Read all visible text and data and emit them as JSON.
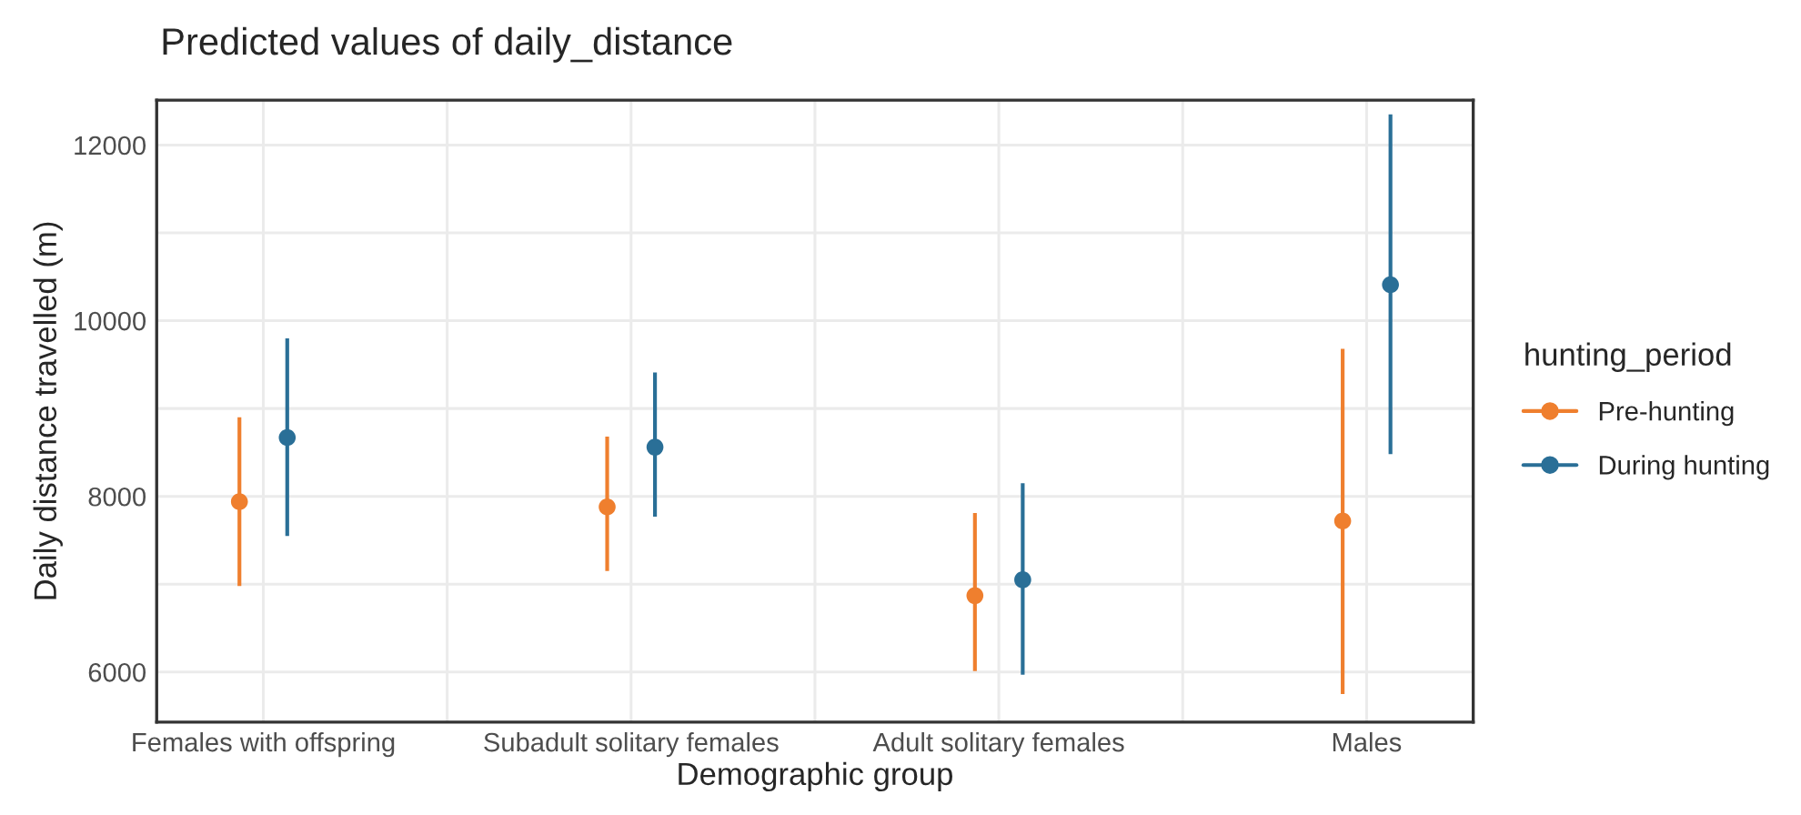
{
  "chart_data": {
    "type": "scatter",
    "title": "Predicted values of daily_distance",
    "xlabel": "Demographic group",
    "ylabel": "Daily distance travelled (m)",
    "legend_title": "hunting_period",
    "categories": [
      "Females with offspring",
      "Subadult solitary females",
      "Adult solitary females",
      "Males"
    ],
    "series": [
      {
        "name": "Pre-hunting",
        "color": "#ef7f2e",
        "values": [
          7940,
          7880,
          6870,
          7720
        ],
        "errors": [
          [
            6980,
            8900
          ],
          [
            7150,
            8680
          ],
          [
            6010,
            7810
          ],
          [
            5750,
            9680
          ]
        ]
      },
      {
        "name": "During hunting",
        "color": "#2a6f97",
        "values": [
          8670,
          8560,
          7050,
          10410
        ],
        "errors": [
          [
            7550,
            9800
          ],
          [
            7770,
            9410
          ],
          [
            5970,
            8150
          ],
          [
            8480,
            12350
          ]
        ]
      }
    ],
    "ylim": [
      5430,
      12510
    ],
    "yticks": [
      6000,
      {
        "value": 7000,
        "label": null
      },
      8000,
      {
        "value": 9000,
        "label": null
      },
      10000,
      {
        "value": 11000,
        "label": null
      },
      12000
    ],
    "grid": true,
    "legend": "right",
    "marker": "circle"
  }
}
